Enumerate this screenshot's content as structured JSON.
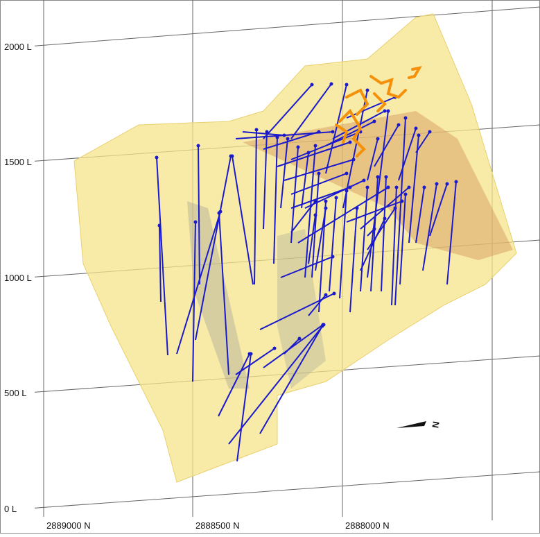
{
  "levels": [
    "2000 L",
    "1500 L",
    "1000 L",
    "500 L",
    "0 L"
  ],
  "northings": [
    "2889000 N",
    "2888500 N",
    "2888000 N"
  ],
  "north_arrow": {
    "label": "N"
  }
}
